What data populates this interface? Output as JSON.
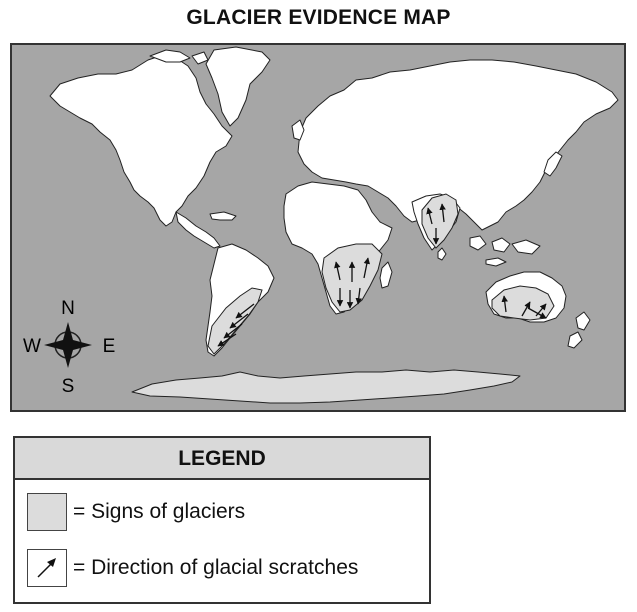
{
  "title": "GLACIER EVIDENCE MAP",
  "compass": {
    "n": "N",
    "s": "S",
    "e": "E",
    "w": "W"
  },
  "legend": {
    "heading": "LEGEND",
    "items": [
      {
        "symbol": "gray-shaded-box",
        "label": "= Signs of glaciers"
      },
      {
        "symbol": "arrow-icon",
        "label": "= Direction of glacial scratches"
      }
    ]
  },
  "colors": {
    "ocean": "#a6a6a6",
    "land": "#ffffff",
    "glacier_area": "#dcdcdc",
    "outline": "#222222",
    "legend_header": "#d9d9d9"
  }
}
